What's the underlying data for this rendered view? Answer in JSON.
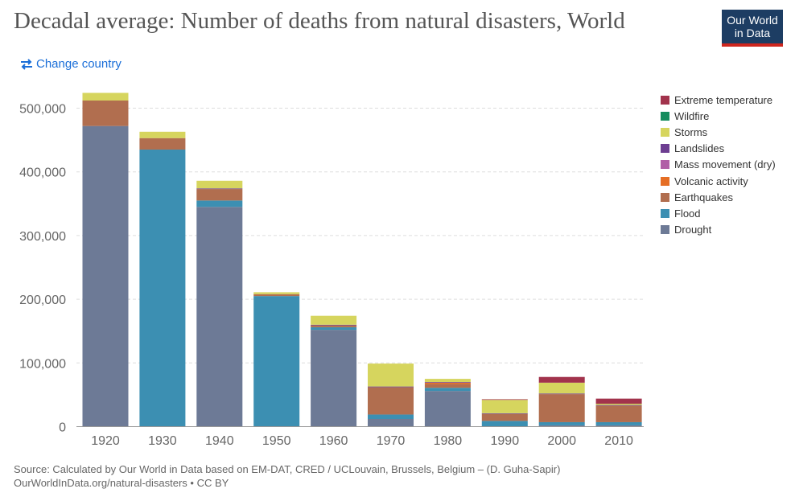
{
  "header": {
    "title": "Decadal average: Number of deaths from natural disasters, World",
    "logo_line1": "Our World",
    "logo_line2": "in Data",
    "change_country": "Change country"
  },
  "footer": {
    "source": "Source: Calculated by Our World in Data based on EM-DAT, CRED / UCLouvain, Brussels, Belgium – (D. Guha-Sapir)",
    "url_license": "OurWorldInData.org/natural-disasters • CC BY"
  },
  "colors": {
    "Extreme temperature": "#a2334c",
    "Wildfire": "#168c5e",
    "Storms": "#d6d55e",
    "Landslides": "#6d3e91",
    "Mass movement (dry)": "#b15fa6",
    "Volcanic activity": "#e56e25",
    "Earthquakes": "#b16e4f",
    "Flood": "#3c8fb2",
    "Drought": "#6d7a96"
  },
  "chart_data": {
    "type": "bar",
    "stacked": true,
    "title": "Decadal average: Number of deaths from natural disasters, World",
    "categories": [
      "1920",
      "1930",
      "1940",
      "1950",
      "1960",
      "1970",
      "1980",
      "1990",
      "2000",
      "2010"
    ],
    "ylim": [
      0,
      520000
    ],
    "yticks": [
      0,
      100000,
      200000,
      300000,
      400000,
      500000
    ],
    "ytick_labels": [
      "0",
      "100,000",
      "200,000",
      "300,000",
      "400,000",
      "500,000"
    ],
    "grid": true,
    "legend_position": "right",
    "legend": [
      "Extreme temperature",
      "Wildfire",
      "Storms",
      "Landslides",
      "Mass movement (dry)",
      "Volcanic activity",
      "Earthquakes",
      "Flood",
      "Drought"
    ],
    "series": [
      {
        "name": "Drought",
        "values": [
          472000,
          0,
          345000,
          0,
          152000,
          12000,
          56000,
          0,
          2000,
          2000
        ]
      },
      {
        "name": "Flood",
        "values": [
          0,
          435000,
          10000,
          205000,
          4000,
          7000,
          5000,
          9000,
          5000,
          5000
        ]
      },
      {
        "name": "Earthquakes",
        "values": [
          40000,
          18000,
          18000,
          3000,
          3000,
          43000,
          6000,
          11000,
          44000,
          26000
        ]
      },
      {
        "name": "Volcanic activity",
        "values": [
          0,
          0,
          0,
          0,
          0,
          0,
          2000,
          0,
          0,
          0
        ]
      },
      {
        "name": "Mass movement (dry)",
        "values": [
          0,
          0,
          0,
          0,
          0,
          0,
          0,
          0,
          0,
          0
        ]
      },
      {
        "name": "Landslides",
        "values": [
          0,
          0,
          1000,
          0,
          1000,
          1000,
          1000,
          1000,
          1000,
          1000
        ]
      },
      {
        "name": "Storms",
        "values": [
          12000,
          10000,
          12000,
          3000,
          14000,
          36000,
          5000,
          21000,
          17000,
          2000
        ]
      },
      {
        "name": "Wildfire",
        "values": [
          0,
          0,
          0,
          0,
          0,
          0,
          0,
          0,
          0,
          0
        ]
      },
      {
        "name": "Extreme temperature",
        "values": [
          0,
          0,
          0,
          0,
          0,
          0,
          0,
          1000,
          9000,
          8000
        ]
      }
    ]
  }
}
